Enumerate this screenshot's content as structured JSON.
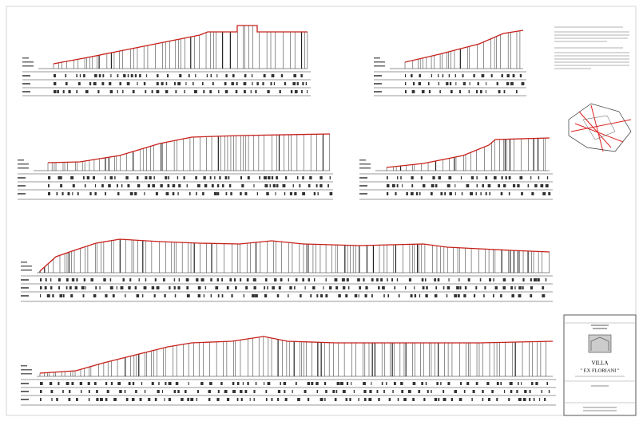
{
  "title_block": {
    "title": "VILLA",
    "subtitle": "\" EX FLORIANI \""
  }
}
